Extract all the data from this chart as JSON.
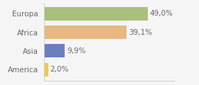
{
  "categories": [
    "Europa",
    "Africa",
    "Asia",
    "America"
  ],
  "values": [
    49.0,
    39.1,
    9.9,
    2.0
  ],
  "labels": [
    "49,0%",
    "39,1%",
    "9,9%",
    "2,0%"
  ],
  "bar_colors": [
    "#a8c07a",
    "#e8b882",
    "#6b7fbe",
    "#f0c84a"
  ],
  "background_color": "#f5f5f5",
  "xlim": [
    0,
    62
  ],
  "bar_height": 0.72,
  "ylabel_fontsize": 7.5,
  "label_fontsize": 7.5
}
